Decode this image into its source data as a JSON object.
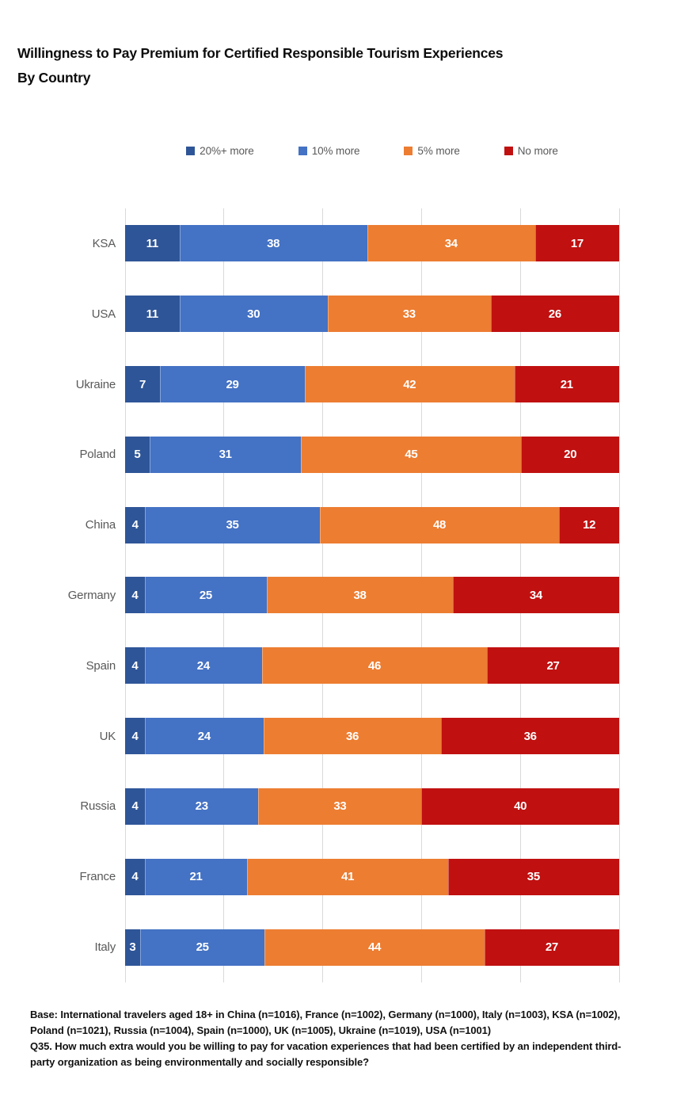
{
  "title": "Willingness to Pay Premium for Certified Responsible Tourism Experiences By Country",
  "footnote": {
    "base_line": "Base: International travelers aged 18+ in China (n=1016), France (n=1002), Germany (n=1000), Italy (n=1003), KSA (n=1002), Poland (n=1021), Russia (n=1004), Spain (n=1000), UK (n=1005), Ukraine (n=1019), USA (n=1001)",
    "question_line": "Q35. How much extra would you be willing to pay for vacation experiences that had been certified by an independent third-party organization as being environmentally and socially responsible?"
  },
  "colors": {
    "series": [
      "#2E5597",
      "#4472C4",
      "#ED7D31",
      "#C01010"
    ],
    "gridline": "#D9D9D9",
    "axis_label": "#595959",
    "value_label": "#FFFFFF"
  },
  "chart_data": {
    "type": "bar",
    "orientation": "horizontal",
    "stacked": true,
    "percent_stacked": true,
    "title": "Willingness to Pay Premium for Certified Responsible Tourism Experiences By Country",
    "xlabel": "",
    "ylabel": "",
    "xlim": [
      0,
      100
    ],
    "x_ticks": [
      0,
      20,
      40,
      60,
      80,
      100
    ],
    "grid": true,
    "legend_position": "top",
    "categories": [
      "KSA",
      "USA",
      "Ukraine",
      "Poland",
      "China",
      "Germany",
      "Spain",
      "UK",
      "Russia",
      "France",
      "Italy"
    ],
    "series": [
      {
        "name": "20%+ more",
        "color": "#2E5597",
        "values": [
          11,
          11,
          7,
          5,
          4,
          4,
          4,
          4,
          4,
          4,
          3
        ]
      },
      {
        "name": "10% more",
        "color": "#4472C4",
        "values": [
          38,
          30,
          29,
          31,
          35,
          25,
          24,
          24,
          23,
          21,
          25
        ]
      },
      {
        "name": "5% more",
        "color": "#ED7D31",
        "values": [
          34,
          33,
          42,
          45,
          48,
          38,
          46,
          36,
          33,
          41,
          44
        ]
      },
      {
        "name": "No more",
        "color": "#C01010",
        "values": [
          17,
          26,
          21,
          20,
          12,
          34,
          27,
          36,
          40,
          35,
          27
        ]
      }
    ]
  }
}
